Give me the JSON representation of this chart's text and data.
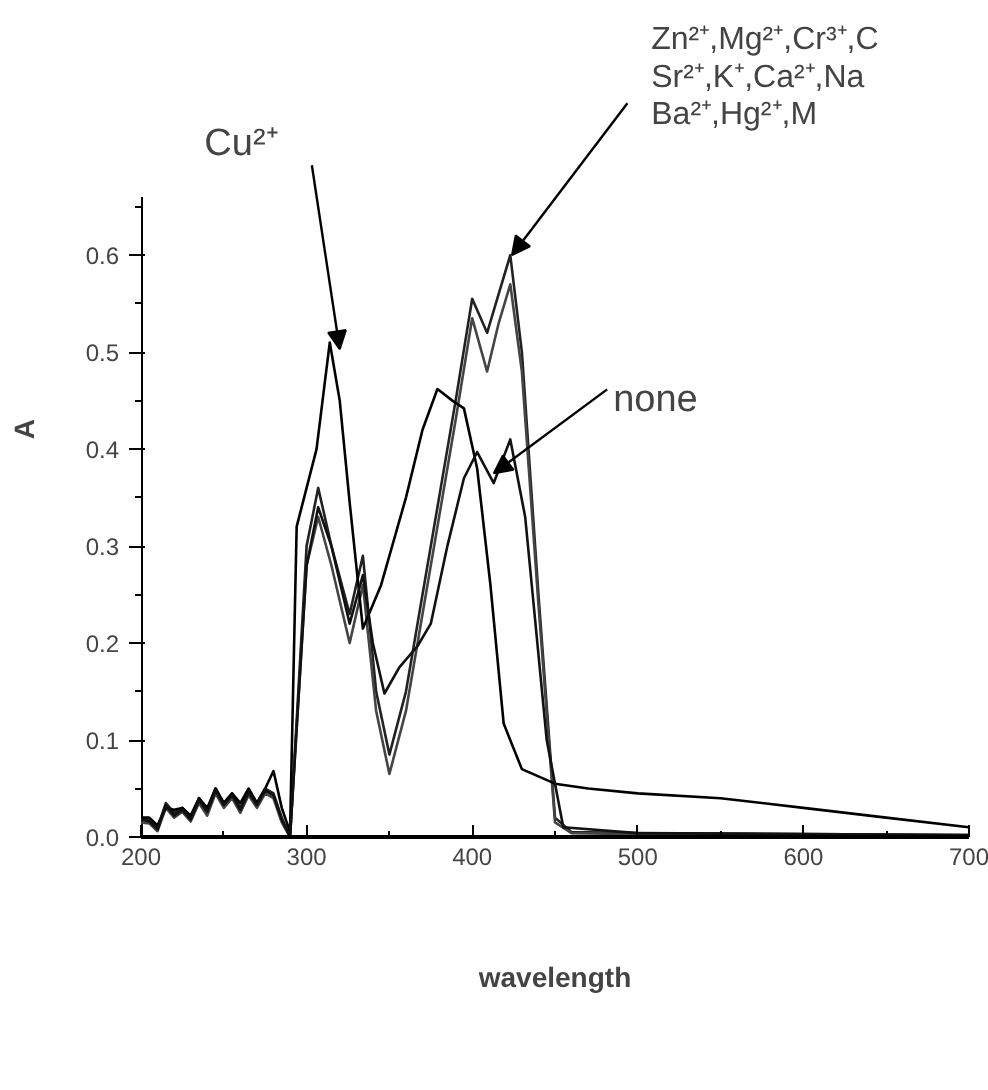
{
  "chart_data": {
    "type": "line",
    "xlabel": "wavelength",
    "ylabel": "A",
    "xlim": [
      200,
      700
    ],
    "ylim": [
      0,
      0.66
    ],
    "xticks": [
      200,
      {
        "value": 250,
        "label": null
      },
      300,
      {
        "value": 350,
        "label": null
      },
      400,
      {
        "value": 450,
        "label": null
      },
      500,
      {
        "value": 550,
        "label": null
      },
      600,
      {
        "value": 650,
        "label": null
      },
      700
    ],
    "yticks": [
      {
        "value": 0,
        "label": "0.0"
      },
      {
        "value": 0.05,
        "label": null
      },
      {
        "value": 0.1,
        "label": "0.1"
      },
      {
        "value": 0.15,
        "label": null
      },
      {
        "value": 0.2,
        "label": "0.2"
      },
      {
        "value": 0.25,
        "label": null
      },
      {
        "value": 0.3,
        "label": "0.3"
      },
      {
        "value": 0.35,
        "label": null
      },
      {
        "value": 0.4,
        "label": "0.4"
      },
      {
        "value": 0.45,
        "label": null
      },
      {
        "value": 0.5,
        "label": "0.5"
      },
      {
        "value": 0.55,
        "label": null
      },
      {
        "value": 0.6,
        "label": "0.6"
      },
      {
        "value": 0.65,
        "label": null
      }
    ],
    "grid": false,
    "line_style": "solid",
    "series": [
      {
        "color": "#222222",
        "x": [
          200,
          205,
          210,
          215,
          220,
          225,
          230,
          235,
          240,
          245,
          250,
          255,
          260,
          265,
          270,
          275,
          280,
          285,
          290,
          295,
          300,
          307,
          315,
          326,
          334,
          342,
          350,
          360,
          370,
          380,
          390,
          400,
          409,
          416,
          423,
          430,
          440,
          450,
          460,
          500,
          600,
          700
        ],
        "values": [
          0.02,
          0.018,
          0.01,
          0.035,
          0.025,
          0.03,
          0.02,
          0.04,
          0.028,
          0.05,
          0.035,
          0.045,
          0.03,
          0.048,
          0.035,
          0.05,
          0.045,
          0.02,
          0.0,
          0.15,
          0.3,
          0.36,
          0.3,
          0.23,
          0.29,
          0.15,
          0.085,
          0.15,
          0.25,
          0.35,
          0.45,
          0.555,
          0.52,
          0.56,
          0.6,
          0.5,
          0.25,
          0.02,
          0.005,
          0.004,
          0.003,
          0.002
        ]
      },
      {
        "color": "#444444",
        "x": [
          200,
          205,
          210,
          215,
          220,
          225,
          230,
          235,
          240,
          245,
          250,
          255,
          260,
          265,
          270,
          275,
          280,
          285,
          290,
          295,
          300,
          307,
          315,
          326,
          334,
          342,
          350,
          360,
          370,
          380,
          390,
          400,
          409,
          416,
          423,
          430,
          440,
          450,
          460,
          500,
          600,
          700
        ],
        "values": [
          0.015,
          0.014,
          0.006,
          0.03,
          0.02,
          0.026,
          0.016,
          0.035,
          0.022,
          0.045,
          0.03,
          0.04,
          0.025,
          0.043,
          0.03,
          0.045,
          0.04,
          0.015,
          0.0,
          0.14,
          0.28,
          0.33,
          0.28,
          0.2,
          0.26,
          0.13,
          0.065,
          0.13,
          0.23,
          0.33,
          0.43,
          0.535,
          0.48,
          0.53,
          0.57,
          0.48,
          0.24,
          0.015,
          0.004,
          0.003,
          0.002,
          0.001
        ]
      },
      {
        "color": "#000000",
        "x": [
          200,
          205,
          210,
          215,
          220,
          225,
          230,
          235,
          240,
          245,
          250,
          255,
          260,
          265,
          270,
          275,
          280,
          285,
          290,
          294,
          300,
          306,
          314,
          320,
          326,
          334,
          345,
          360,
          370,
          379,
          388,
          395,
          403,
          411,
          419,
          430,
          450,
          470,
          500,
          550,
          600,
          650,
          700
        ],
        "values": [
          0.02,
          0.02,
          0.012,
          0.03,
          0.028,
          0.03,
          0.022,
          0.04,
          0.03,
          0.05,
          0.035,
          0.045,
          0.035,
          0.05,
          0.035,
          0.05,
          0.068,
          0.03,
          0.005,
          0.32,
          0.36,
          0.4,
          0.51,
          0.45,
          0.345,
          0.215,
          0.26,
          0.35,
          0.42,
          0.462,
          0.45,
          0.442,
          0.38,
          0.26,
          0.117,
          0.07,
          0.055,
          0.05,
          0.045,
          0.04,
          0.03,
          0.02,
          0.01
        ]
      },
      {
        "color": "#111111",
        "x": [
          200,
          205,
          210,
          215,
          220,
          225,
          230,
          235,
          240,
          245,
          250,
          255,
          260,
          265,
          270,
          275,
          280,
          285,
          290,
          300,
          307,
          315,
          326,
          334,
          340,
          347,
          356,
          367,
          375,
          385,
          395,
          403,
          413,
          423,
          432,
          445,
          455,
          500,
          600,
          700
        ],
        "values": [
          0.018,
          0.016,
          0.008,
          0.033,
          0.022,
          0.028,
          0.018,
          0.038,
          0.026,
          0.048,
          0.033,
          0.043,
          0.028,
          0.046,
          0.033,
          0.048,
          0.043,
          0.018,
          0.0,
          0.28,
          0.34,
          0.3,
          0.22,
          0.27,
          0.2,
          0.148,
          0.175,
          0.197,
          0.22,
          0.3,
          0.37,
          0.397,
          0.365,
          0.41,
          0.33,
          0.1,
          0.01,
          0.004,
          0.003,
          0.002
        ]
      }
    ],
    "annotations": [
      {
        "text": "Cu²⁺",
        "x": 320,
        "y": 0.503
      },
      {
        "text": "Zn²⁺,Mg²⁺,Cr³⁺,C\nSr²⁺,K⁺,Ca²⁺,Na\n   Ba²⁺,Hg²⁺,M",
        "x": 424,
        "y": 0.6
      },
      {
        "text": "none",
        "x": 413,
        "y": 0.375
      }
    ]
  }
}
